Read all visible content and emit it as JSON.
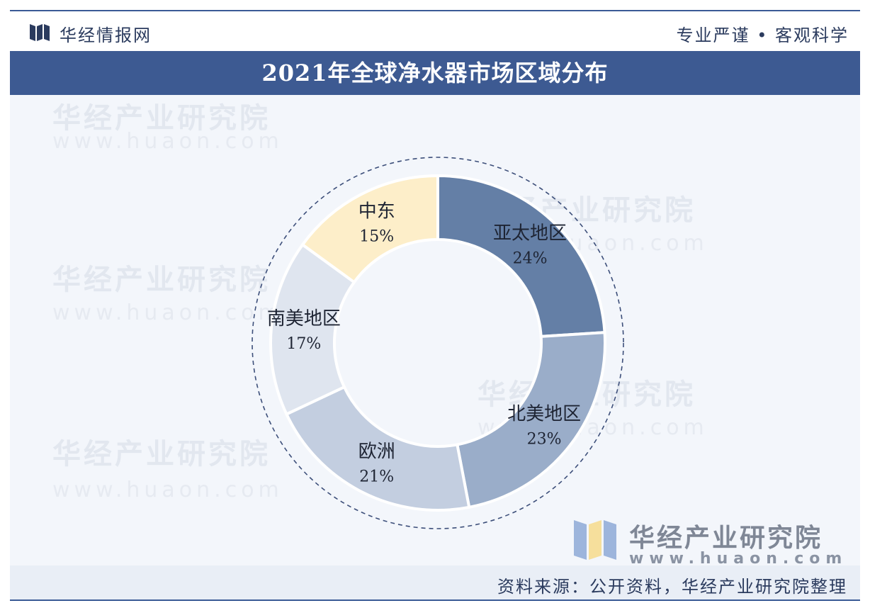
{
  "header": {
    "brand": "华经情报网",
    "slogan": "专业严谨 • 客观科学"
  },
  "title": "2021年全球净水器市场区域分布",
  "footer": {
    "source": "资料来源：公开资料，华经产业研究院整理",
    "brand_name": "华经产业研究院",
    "brand_url": "www.huaon.com"
  },
  "watermark": {
    "text": "华经产业研究院",
    "url": "www.huaon.com"
  },
  "colors": {
    "header_bar": "#3d5a92",
    "text_dark": "#2b3b5e"
  },
  "chart_data": {
    "type": "pie",
    "donut": true,
    "title": "2021年全球净水器市场区域分布",
    "unit": "%",
    "categories": [
      "亚太地区",
      "北美地区",
      "欧洲",
      "南美地区",
      "中东"
    ],
    "values": [
      24,
      23,
      21,
      17,
      15
    ],
    "labels": [
      "24%",
      "23%",
      "21%",
      "17%",
      "15%"
    ],
    "colors": [
      "#647fa6",
      "#9aadc9",
      "#c3ceE0",
      "#dfe5ef",
      "#fdeec9"
    ],
    "legend": "none"
  }
}
